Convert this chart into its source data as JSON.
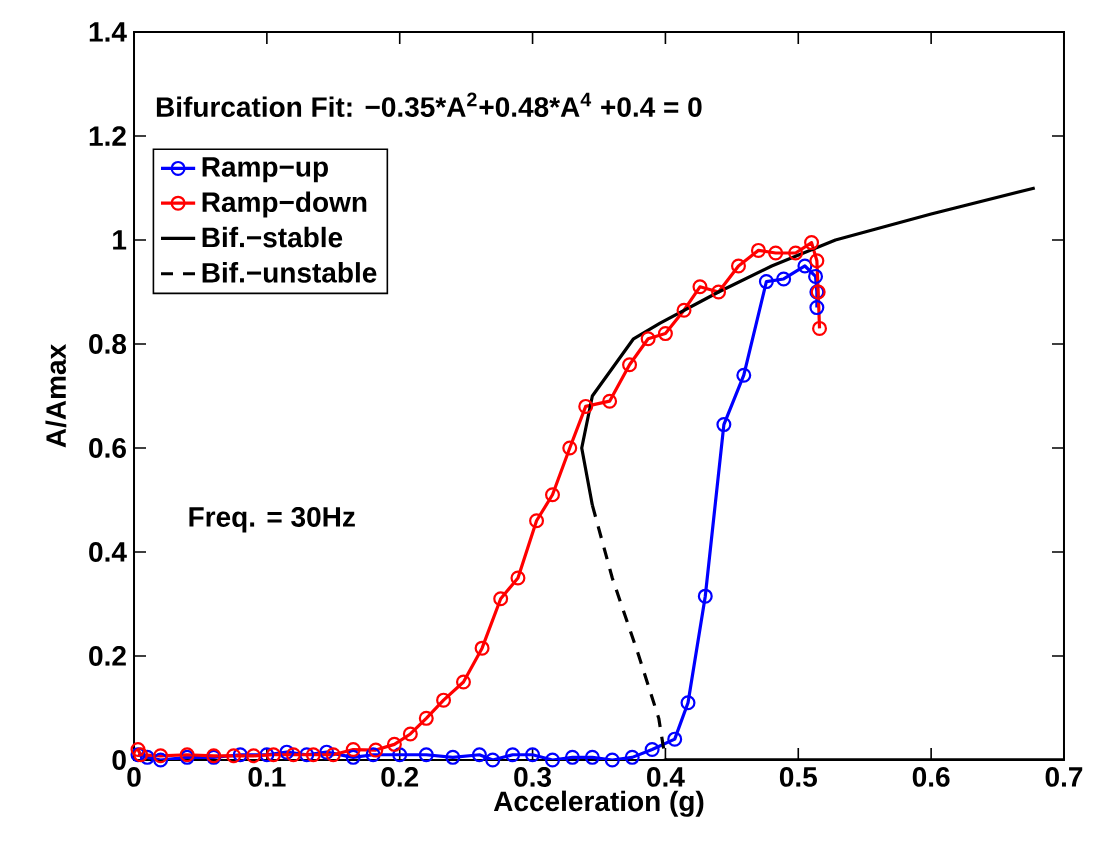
{
  "chart_data": {
    "type": "line",
    "xlabel": "Acceleration (g)",
    "ylabel": "A/Amax",
    "annotations": [
      "Bifurcation Fit: −0.35*A$^{2}$+0.48*A$^{4}$ +0.4 = 0",
      "Freq. = 30Hz"
    ],
    "xlim": [
      0,
      0.7
    ],
    "ylim": [
      0,
      1.4
    ],
    "xticks": [
      0,
      0.1,
      0.2,
      0.3,
      0.4,
      0.5,
      0.6,
      0.7
    ],
    "yticks": [
      0,
      0.2,
      0.4,
      0.6,
      0.8,
      1,
      1.2,
      1.4
    ],
    "legend": "top left",
    "grid": false,
    "series": [
      {
        "name": "Ramp−up",
        "color": "#0000ff",
        "marker": "circle",
        "line_style": "solid",
        "x": [
          0.003,
          0.01,
          0.02,
          0.04,
          0.06,
          0.08,
          0.1,
          0.115,
          0.13,
          0.145,
          0.165,
          0.18,
          0.2,
          0.22,
          0.24,
          0.26,
          0.27,
          0.285,
          0.3,
          0.315,
          0.33,
          0.345,
          0.36,
          0.375,
          0.39,
          0.407,
          0.417,
          0.43,
          0.444,
          0.459,
          0.476,
          0.489,
          0.505,
          0.513,
          0.514,
          0.514
        ],
        "values": [
          0.01,
          0.005,
          0.0,
          0.005,
          0.005,
          0.01,
          0.01,
          0.015,
          0.01,
          0.015,
          0.005,
          0.01,
          0.01,
          0.01,
          0.005,
          0.01,
          0.0,
          0.01,
          0.01,
          0.0,
          0.005,
          0.005,
          0.0,
          0.005,
          0.02,
          0.04,
          0.11,
          0.315,
          0.645,
          0.74,
          0.92,
          0.925,
          0.95,
          0.93,
          0.9,
          0.87
        ]
      },
      {
        "name": "Ramp−down",
        "color": "#ff0000",
        "marker": "circle",
        "line_style": "solid",
        "x": [
          0.516,
          0.515,
          0.514,
          0.51,
          0.498,
          0.483,
          0.47,
          0.455,
          0.44,
          0.426,
          0.414,
          0.4,
          0.387,
          0.373,
          0.358,
          0.34,
          0.328,
          0.315,
          0.303,
          0.289,
          0.276,
          0.262,
          0.248,
          0.233,
          0.22,
          0.208,
          0.196,
          0.182,
          0.165,
          0.15,
          0.135,
          0.12,
          0.105,
          0.09,
          0.075,
          0.06,
          0.04,
          0.02,
          0.005,
          0.003
        ],
        "values": [
          0.83,
          0.9,
          0.96,
          0.995,
          0.975,
          0.975,
          0.98,
          0.95,
          0.9,
          0.91,
          0.865,
          0.82,
          0.81,
          0.76,
          0.69,
          0.68,
          0.6,
          0.51,
          0.46,
          0.35,
          0.31,
          0.215,
          0.15,
          0.115,
          0.08,
          0.05,
          0.03,
          0.019,
          0.02,
          0.01,
          0.01,
          0.01,
          0.01,
          0.008,
          0.008,
          0.008,
          0.01,
          0.008,
          0.01,
          0.02
        ]
      },
      {
        "name": "Bif.−stable",
        "color": "#000000",
        "marker": "none",
        "line_style": "solid",
        "x": [
          0.4,
          0.7,
          null,
          0.345,
          0.337,
          0.345,
          0.376,
          0.396,
          0.44,
          0.48,
          0.528,
          0.6,
          0.678
        ],
        "values": [
          0,
          0,
          null,
          0.49,
          0.6,
          0.7,
          0.81,
          0.84,
          0.9,
          0.95,
          1.0,
          1.05,
          1.1
        ]
      },
      {
        "name": "Bif.−unstable",
        "color": "#000000",
        "marker": "none",
        "line_style": "dashed",
        "x": [
          0.345,
          0.36,
          0.38,
          0.395,
          0.4
        ],
        "values": [
          0.49,
          0.35,
          0.2,
          0.08,
          0.0
        ]
      }
    ]
  }
}
